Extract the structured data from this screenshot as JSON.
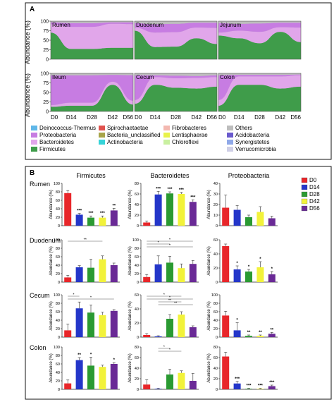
{
  "panels": {
    "A": {
      "label": "A",
      "y_axis_label": "Abundance (%)",
      "y_ticks": [
        "0",
        "25",
        "50",
        "75",
        "100"
      ],
      "x_ticks": [
        "D0",
        "D14",
        "D28",
        "D42",
        "D56"
      ],
      "legend": [
        {
          "name": "Deinococcus-Thermus",
          "color": "#5fb7e8"
        },
        {
          "name": "Proteobacteria",
          "color": "#c77ce2"
        },
        {
          "name": "Bacteroidetes",
          "color": "#e1a6ea"
        },
        {
          "name": "Firmicutes",
          "color": "#3f9c4a"
        },
        {
          "name": "Spirochaetaetae",
          "color": "#e0524e"
        },
        {
          "name": "Bacteria_unclassified",
          "color": "#a8a54a"
        },
        {
          "name": "Actinobacteria",
          "color": "#36d3d8"
        },
        {
          "name": "Fibrobacteres",
          "color": "#f3b8b0"
        },
        {
          "name": "Lentisphaerae",
          "color": "#e8f24a"
        },
        {
          "name": "Chloroflexi",
          "color": "#c9f0a0"
        },
        {
          "name": "Others",
          "color": "#bdbdbd"
        },
        {
          "name": "Acidobacteria",
          "color": "#6a5acd"
        },
        {
          "name": "Synergistetes",
          "color": "#8fa8e8"
        },
        {
          "name": "Verrucomicrobia",
          "color": "#cfcfe6"
        }
      ]
    },
    "B": {
      "label": "B",
      "y_axis_label": "Abundance (%)",
      "columns": [
        "Firmicutes",
        "Bacteroidetes",
        "Proteobacteria"
      ],
      "legend": [
        {
          "name": "D0",
          "color": "#e8262a"
        },
        {
          "name": "D14",
          "color": "#2436c9"
        },
        {
          "name": "D28",
          "color": "#2a9a32"
        },
        {
          "name": "D42",
          "color": "#f2f23a"
        },
        {
          "name": "D56",
          "color": "#6a2a96"
        }
      ]
    }
  },
  "chart_data": [
    {
      "type": "area",
      "panel": "A",
      "x": [
        "D0",
        "D14",
        "D28",
        "D42",
        "D56"
      ],
      "ylim": [
        0,
        100
      ],
      "stack_order_bottom_to_top": [
        "Firmicutes",
        "Bacteroidetes",
        "Proteobacteria",
        "Others"
      ],
      "facets": [
        {
          "title": "Rumen",
          "series": [
            {
              "name": "Firmicutes",
              "values": [
                70,
                27,
                27,
                30,
                30
              ]
            },
            {
              "name": "Bacteroidetes",
              "values": [
                22,
                58,
                58,
                63,
                62
              ]
            },
            {
              "name": "Proteobacteria",
              "values": [
                5,
                10,
                10,
                4,
                5
              ]
            },
            {
              "name": "Others",
              "values": [
                3,
                5,
                5,
                3,
                3
              ]
            }
          ]
        },
        {
          "title": "Duodenum",
          "series": [
            {
              "name": "Firmicutes",
              "values": [
                75,
                32,
                33,
                55,
                40
              ]
            },
            {
              "name": "Bacteroidetes",
              "values": [
                8,
                38,
                38,
                28,
                42
              ]
            },
            {
              "name": "Proteobacteria",
              "values": [
                12,
                22,
                22,
                13,
                14
              ]
            },
            {
              "name": "Others",
              "values": [
                5,
                8,
                7,
                4,
                4
              ]
            }
          ]
        },
        {
          "title": "Jejunum",
          "series": [
            {
              "name": "Firmicutes",
              "values": [
                62,
                55,
                42,
                72,
                45
              ]
            },
            {
              "name": "Bacteroidetes",
              "values": [
                8,
                20,
                30,
                12,
                38
              ]
            },
            {
              "name": "Proteobacteria",
              "values": [
                25,
                18,
                22,
                12,
                13
              ]
            },
            {
              "name": "Others",
              "values": [
                5,
                7,
                6,
                4,
                4
              ]
            }
          ]
        },
        {
          "title": "Ileum",
          "series": [
            {
              "name": "Firmicutes",
              "values": [
                12,
                15,
                15,
                70,
                18
              ]
            },
            {
              "name": "Bacteroidetes",
              "values": [
                5,
                8,
                8,
                8,
                10
              ]
            },
            {
              "name": "Proteobacteria",
              "values": [
                78,
                72,
                72,
                18,
                67
              ]
            },
            {
              "name": "Others",
              "values": [
                5,
                5,
                5,
                4,
                5
              ]
            }
          ]
        },
        {
          "title": "Cecum",
          "series": [
            {
              "name": "Firmicutes",
              "values": [
                20,
                70,
                62,
                60,
                65
              ]
            },
            {
              "name": "Bacteroidetes",
              "values": [
                10,
                20,
                25,
                28,
                25
              ]
            },
            {
              "name": "Proteobacteria",
              "values": [
                65,
                5,
                7,
                5,
                5
              ]
            },
            {
              "name": "Others",
              "values": [
                5,
                5,
                6,
                7,
                5
              ]
            }
          ]
        },
        {
          "title": "Colon",
          "series": [
            {
              "name": "Firmicutes",
              "values": [
                15,
                70,
                70,
                60,
                65
              ]
            },
            {
              "name": "Bacteroidetes",
              "values": [
                15,
                22,
                22,
                32,
                30
              ]
            },
            {
              "name": "Proteobacteria",
              "values": [
                65,
                4,
                4,
                4,
                2
              ]
            },
            {
              "name": "Others",
              "values": [
                5,
                4,
                4,
                4,
                3
              ]
            }
          ]
        }
      ]
    },
    {
      "type": "bar",
      "panel": "B",
      "categories": [
        "D0",
        "D14",
        "D28",
        "D42",
        "D56"
      ],
      "ylabel": "Abundance (%)",
      "grid": [
        {
          "row": "Rumen",
          "col": "Firmicutes",
          "ylim": [
            0,
            100
          ],
          "yticks": [
            "0",
            "20",
            "40",
            "60",
            "80",
            "100"
          ],
          "values": [
            77,
            26,
            19,
            19,
            36
          ],
          "errors": [
            6,
            3,
            4,
            4,
            5
          ],
          "stars": [
            "",
            "***",
            "***",
            "***",
            "**"
          ],
          "brackets": []
        },
        {
          "row": "Rumen",
          "col": "Bacteroidetes",
          "ylim": [
            0,
            80
          ],
          "yticks": [
            "0",
            "20",
            "40",
            "60",
            "80"
          ],
          "values": [
            6,
            59,
            61,
            60,
            45
          ],
          "errors": [
            3,
            6,
            3,
            3,
            4
          ],
          "stars": [
            "",
            "***",
            "***",
            "***",
            "***"
          ],
          "brackets": []
        },
        {
          "row": "Rumen",
          "col": "Proteobacteria",
          "ylim": [
            0,
            40
          ],
          "yticks": [
            "0",
            "10",
            "20",
            "30",
            "40"
          ],
          "values": [
            17,
            15,
            8,
            13,
            7
          ],
          "errors": [
            12,
            4,
            2,
            5,
            2
          ],
          "stars": [
            "",
            "",
            "",
            "",
            ""
          ],
          "brackets": []
        },
        {
          "row": "Duodenum",
          "col": "Firmicutes",
          "ylim": [
            0,
            100
          ],
          "yticks": [
            "0",
            "20",
            "40",
            "60",
            "80",
            "100"
          ],
          "values": [
            11,
            35,
            34,
            54,
            40
          ],
          "errors": [
            5,
            4,
            20,
            8,
            5
          ],
          "stars": [
            "",
            "",
            "",
            "",
            ""
          ],
          "brackets": [
            {
              "from": "D0",
              "to": "D42",
              "label": "**"
            }
          ]
        },
        {
          "row": "Duodenum",
          "col": "Bacteroidetes",
          "ylim": [
            0,
            100
          ],
          "yticks": [
            "0",
            "20",
            "40",
            "60",
            "80",
            "100"
          ],
          "values": [
            12,
            42,
            46,
            33,
            43
          ],
          "errors": [
            6,
            20,
            15,
            10,
            8
          ],
          "stars": [
            "",
            "",
            "",
            "",
            ""
          ],
          "brackets": [
            {
              "from": "D0",
              "to": "D56",
              "label": "*"
            },
            {
              "from": "D0",
              "to": "D28",
              "label": "*"
            },
            {
              "from": "D0",
              "to": "D56",
              "label": "*"
            }
          ]
        },
        {
          "row": "Duodenum",
          "col": "Proteobacteria",
          "ylim": [
            0,
            60
          ],
          "yticks": [
            "0",
            "20",
            "40",
            "60"
          ],
          "values": [
            51,
            18,
            15,
            21,
            11
          ],
          "errors": [
            3,
            5,
            3,
            8,
            4
          ],
          "stars": [
            "",
            "*",
            "*",
            "*",
            "*"
          ],
          "brackets": []
        },
        {
          "row": "Cecum",
          "col": "Firmicutes",
          "ylim": [
            0,
            100
          ],
          "yticks": [
            "0",
            "20",
            "40",
            "60",
            "80",
            "100"
          ],
          "values": [
            16,
            68,
            58,
            52,
            62
          ],
          "errors": [
            15,
            15,
            18,
            7,
            3
          ],
          "stars": [
            "",
            "",
            "",
            "",
            ""
          ],
          "brackets": [
            {
              "from": "D0",
              "to": "D14",
              "label": "*"
            },
            {
              "from": "D0",
              "to": "D56",
              "label": "*"
            }
          ]
        },
        {
          "row": "Cecum",
          "col": "Bacteroidetes",
          "ylim": [
            0,
            60
          ],
          "yticks": [
            "0",
            "20",
            "40",
            "60"
          ],
          "values": [
            3,
            1,
            26,
            32,
            14
          ],
          "errors": [
            2,
            1,
            6,
            4,
            2
          ],
          "stars": [
            "",
            "",
            "",
            "",
            ""
          ],
          "brackets": [
            {
              "from": "D0",
              "to": "D42",
              "label": "*"
            },
            {
              "from": "D0",
              "to": "D56",
              "label": "*"
            },
            {
              "from": "D14",
              "to": "D42",
              "label": "**"
            },
            {
              "from": "D14",
              "to": "D56",
              "label": "**"
            }
          ]
        },
        {
          "row": "Cecum",
          "col": "Proteobacteria",
          "ylim": [
            0,
            100
          ],
          "yticks": [
            "0",
            "20",
            "40",
            "60",
            "80",
            "100"
          ],
          "values": [
            51,
            16,
            3,
            3,
            8
          ],
          "errors": [
            10,
            18,
            2,
            2,
            3
          ],
          "stars": [
            "",
            "*",
            "**",
            "**",
            "**"
          ],
          "brackets": []
        },
        {
          "row": "Colon",
          "col": "Firmicutes",
          "ylim": [
            0,
            100
          ],
          "yticks": [
            "0",
            "20",
            "40",
            "60",
            "80",
            "100"
          ],
          "values": [
            14,
            69,
            56,
            53,
            60
          ],
          "errors": [
            8,
            6,
            20,
            4,
            3
          ],
          "stars": [
            "",
            "**",
            "*",
            "",
            "*"
          ],
          "brackets": []
        },
        {
          "row": "Colon",
          "col": "Bacteroidetes",
          "ylim": [
            0,
            80
          ],
          "yticks": [
            "0",
            "20",
            "40",
            "60",
            "80"
          ],
          "values": [
            9,
            1,
            28,
            31,
            16
          ],
          "errors": [
            9,
            1,
            10,
            4,
            14
          ],
          "stars": [
            "",
            "",
            "",
            "",
            ""
          ],
          "brackets": [
            {
              "from": "D14",
              "to": "D28",
              "label": "*"
            },
            {
              "from": "D14",
              "to": "D42",
              "label": "*"
            }
          ]
        },
        {
          "row": "Colon",
          "col": "Proteobacteria",
          "ylim": [
            0,
            80
          ],
          "yticks": [
            "0",
            "20",
            "40",
            "60",
            "80"
          ],
          "values": [
            62,
            11,
            1,
            1,
            6
          ],
          "errors": [
            8,
            4,
            1,
            1,
            2
          ],
          "stars": [
            "",
            "***",
            "***",
            "***",
            "***"
          ],
          "brackets": []
        }
      ]
    }
  ]
}
